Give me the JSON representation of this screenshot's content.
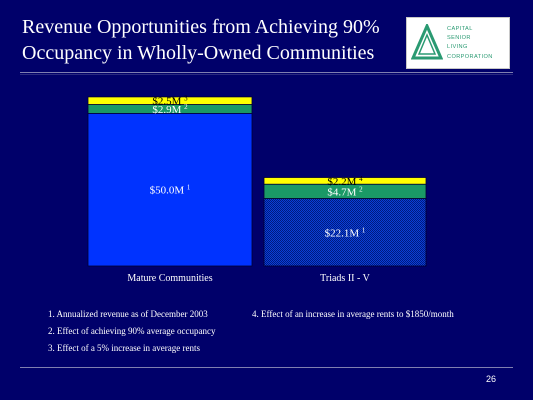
{
  "slide": {
    "title_line1": "Revenue Opportunities from Achieving 90%",
    "title_line2": "Occupancy in Wholly-Owned Communities",
    "page_number": "26"
  },
  "logo": {
    "line1": "CAPITAL",
    "line2": "SENIOR",
    "line3": "LIVING",
    "line4": "CORPORATION"
  },
  "chart_data": {
    "type": "bar",
    "stacked": true,
    "unit": "$M",
    "categories": [
      "Mature Communities",
      "Triads II - V"
    ],
    "series": [
      {
        "footnote": "1",
        "values": [
          50.0,
          22.1
        ],
        "labels": [
          "$50.0M",
          "$22.1M"
        ],
        "color": "#0033ff"
      },
      {
        "footnote": "2",
        "values": [
          2.9,
          4.7
        ],
        "labels": [
          "$2.9M",
          "$4.7M"
        ],
        "color": "#1a9966"
      },
      {
        "footnote": "3",
        "values": [
          2.5,
          null
        ],
        "labels": [
          "$2.5M",
          null
        ],
        "color": "#ffff00"
      },
      {
        "footnote": "4",
        "values": [
          null,
          2.2
        ],
        "labels": [
          null,
          "$2.2M"
        ],
        "color": "#ffff00"
      }
    ],
    "footnotes": [
      "1. Annualized revenue as of December 2003",
      "2. Effect of achieving 90% average occupancy",
      "3. Effect of a 5% increase in average rents",
      "4. Effect of an increase in average rents to $1850/month"
    ]
  }
}
